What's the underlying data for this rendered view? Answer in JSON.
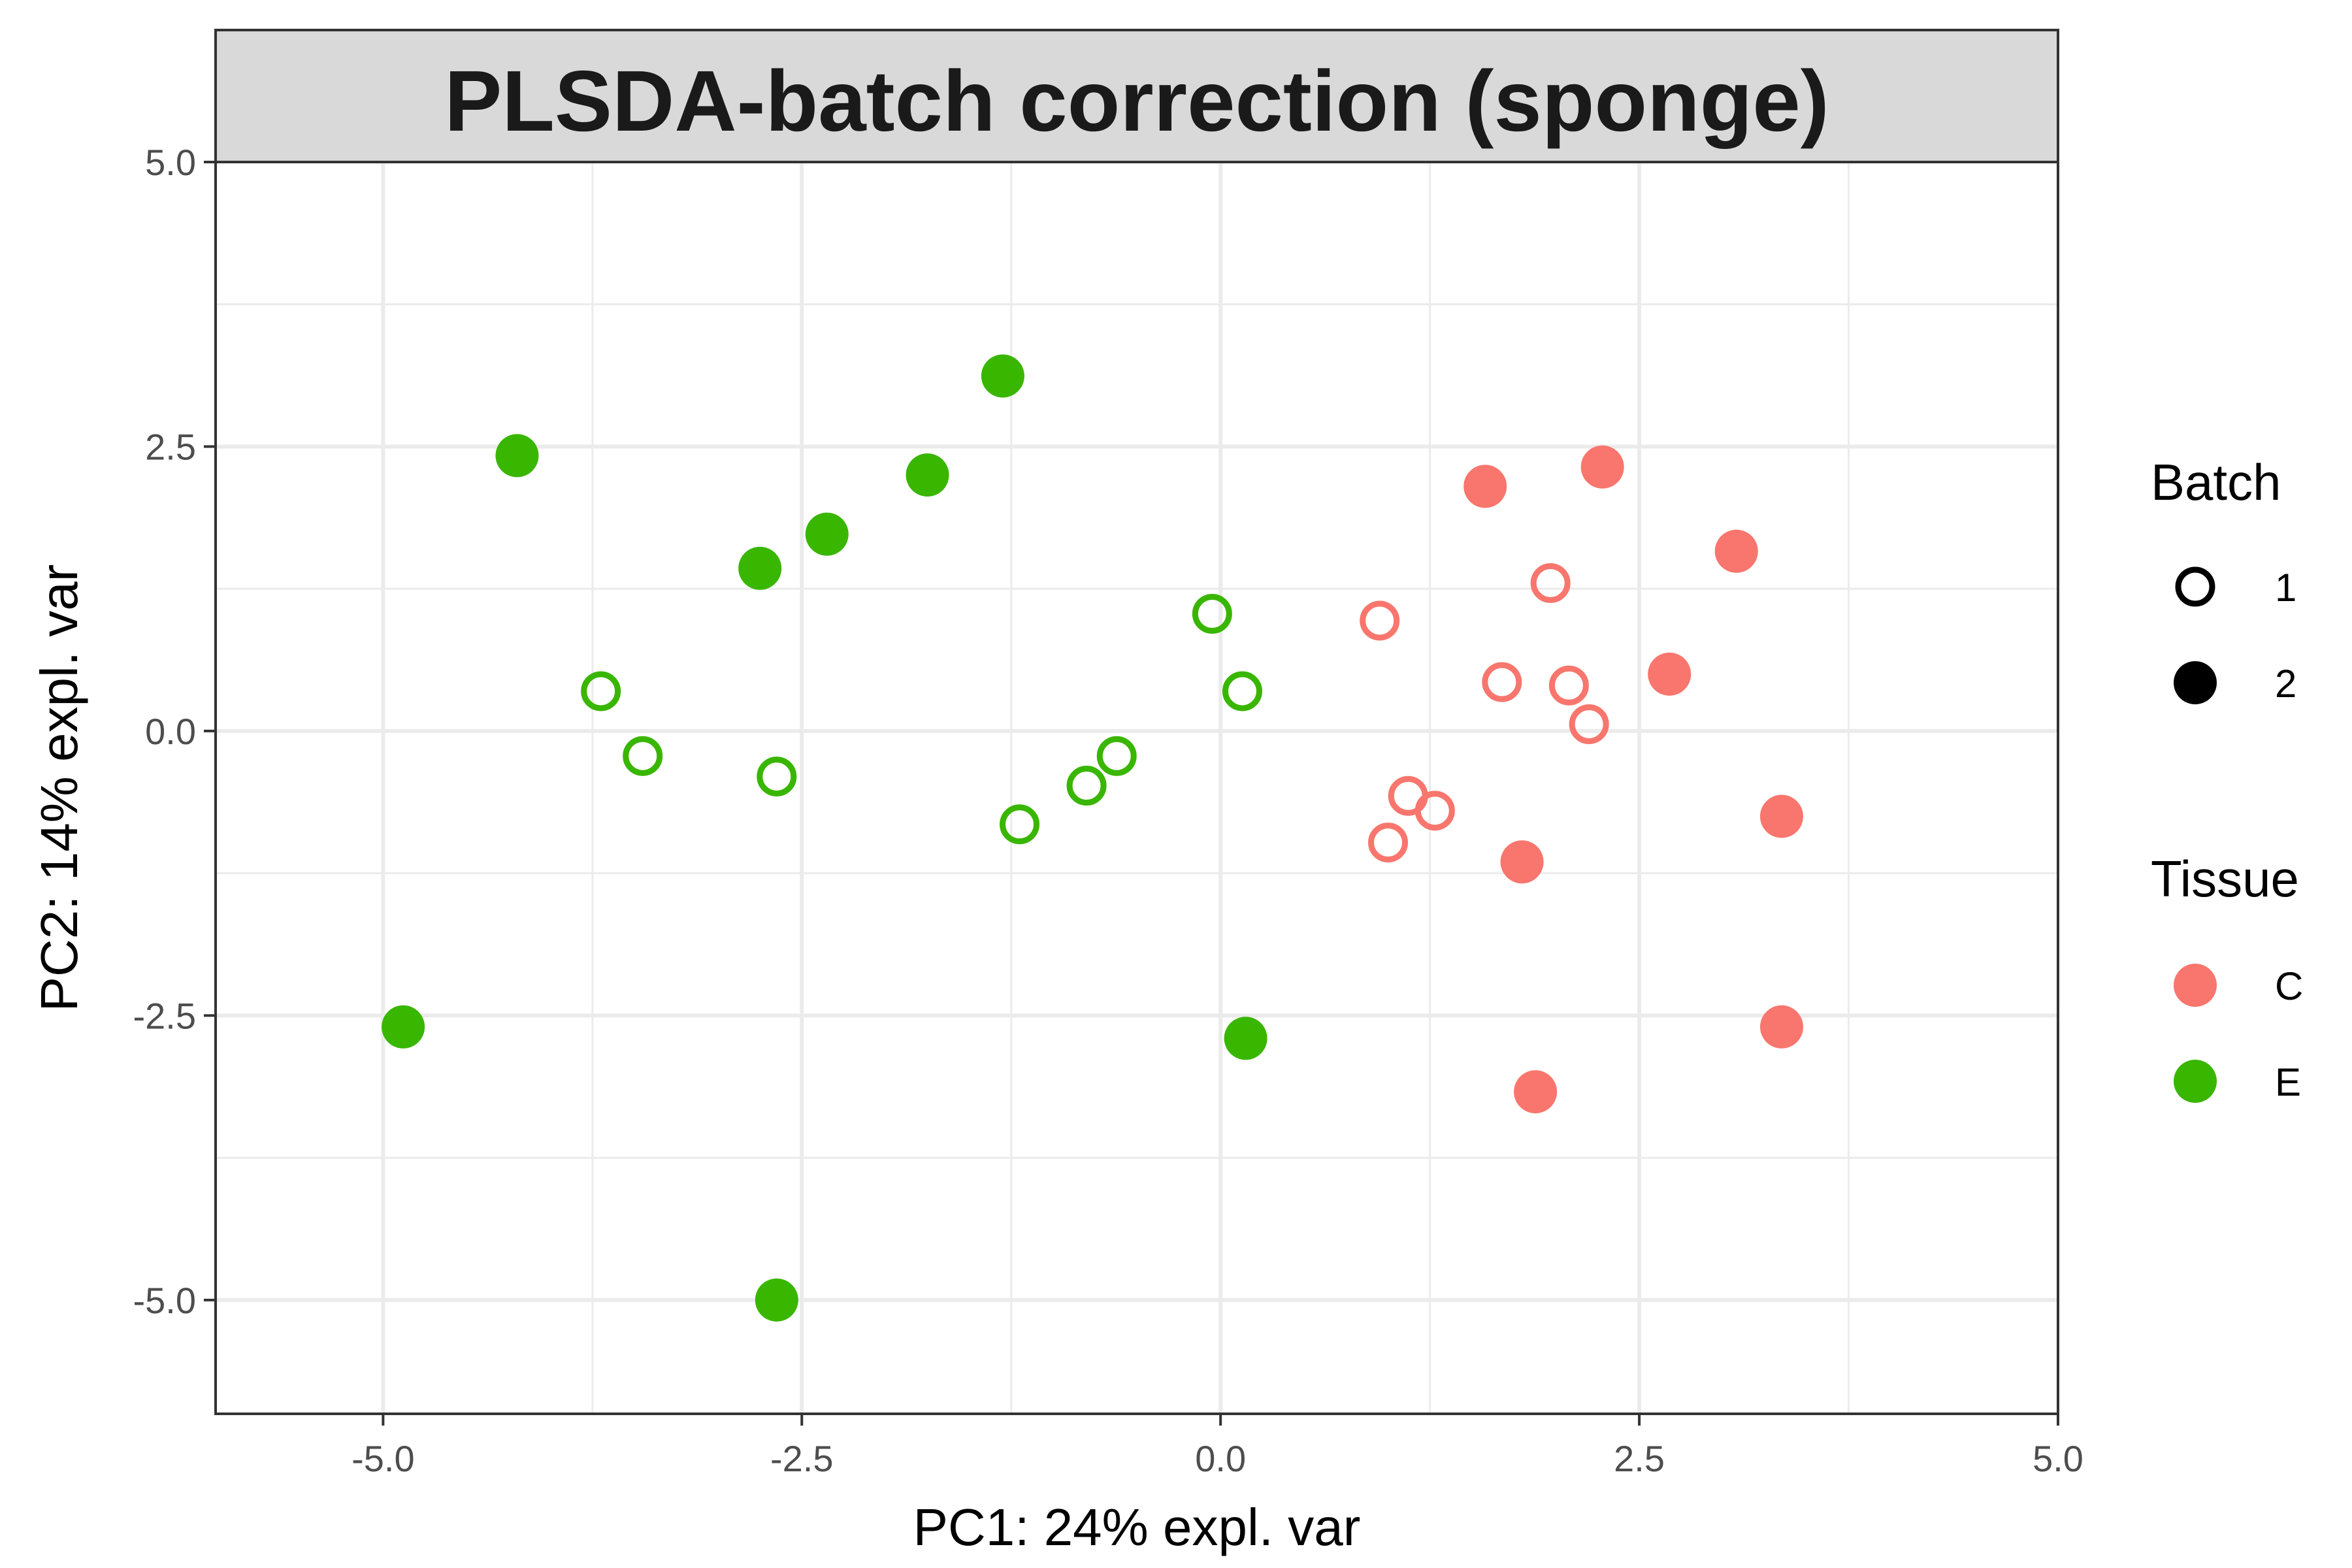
{
  "chart_data": {
    "type": "scatter",
    "title": "PLSDA-batch correction (sponge)",
    "xlabel": "PC1: 24% expl. var",
    "ylabel": "PC2: 14% expl. var",
    "xlim": [
      -6.0,
      5.0
    ],
    "ylim": [
      -6.0,
      5.0
    ],
    "xticks": [
      -5.0,
      -2.5,
      0.0,
      2.5,
      5.0
    ],
    "xtick_labels": [
      "-5.0",
      "-2.5",
      "0.0",
      "2.5",
      "5.0"
    ],
    "yticks": [
      -5.0,
      -2.5,
      0.0,
      2.5,
      5.0
    ],
    "ytick_labels": [
      "-5.0",
      "-2.5",
      "0.0",
      "2.5",
      "5.0"
    ],
    "grid": true,
    "legend_position": "right",
    "colors": {
      "C": "#f8766d",
      "E": "#39b600"
    },
    "legends": {
      "batch": {
        "title": "Batch",
        "entries": [
          {
            "label": "1",
            "shape": "open-circle"
          },
          {
            "label": "2",
            "shape": "filled-circle"
          }
        ]
      },
      "tissue": {
        "title": "Tissue",
        "entries": [
          {
            "label": "C",
            "color": "#f8766d"
          },
          {
            "label": "E",
            "color": "#39b600"
          }
        ]
      }
    },
    "points": [
      {
        "x": -1.3,
        "y": 3.12,
        "tissue": "E",
        "batch": "2"
      },
      {
        "x": -4.2,
        "y": 2.42,
        "tissue": "E",
        "batch": "2"
      },
      {
        "x": -1.75,
        "y": 2.25,
        "tissue": "E",
        "batch": "2"
      },
      {
        "x": -2.35,
        "y": 1.73,
        "tissue": "E",
        "batch": "2"
      },
      {
        "x": -2.75,
        "y": 1.43,
        "tissue": "E",
        "batch": "2"
      },
      {
        "x": -4.88,
        "y": -2.6,
        "tissue": "E",
        "batch": "2"
      },
      {
        "x": 0.15,
        "y": -2.7,
        "tissue": "E",
        "batch": "2"
      },
      {
        "x": -2.65,
        "y": -5.0,
        "tissue": "E",
        "batch": "2"
      },
      {
        "x": -0.05,
        "y": 1.03,
        "tissue": "E",
        "batch": "1"
      },
      {
        "x": -3.7,
        "y": 0.35,
        "tissue": "E",
        "batch": "1"
      },
      {
        "x": 0.13,
        "y": 0.35,
        "tissue": "E",
        "batch": "1"
      },
      {
        "x": -3.45,
        "y": -0.22,
        "tissue": "E",
        "batch": "1"
      },
      {
        "x": -0.62,
        "y": -0.22,
        "tissue": "E",
        "batch": "1"
      },
      {
        "x": -2.65,
        "y": -0.4,
        "tissue": "E",
        "batch": "1"
      },
      {
        "x": -0.8,
        "y": -0.48,
        "tissue": "E",
        "batch": "1"
      },
      {
        "x": -1.2,
        "y": -0.82,
        "tissue": "E",
        "batch": "1"
      },
      {
        "x": 2.28,
        "y": 2.32,
        "tissue": "C",
        "batch": "2"
      },
      {
        "x": 1.58,
        "y": 2.15,
        "tissue": "C",
        "batch": "2"
      },
      {
        "x": 3.08,
        "y": 1.58,
        "tissue": "C",
        "batch": "2"
      },
      {
        "x": 2.68,
        "y": 0.5,
        "tissue": "C",
        "batch": "2"
      },
      {
        "x": 3.35,
        "y": -0.75,
        "tissue": "C",
        "batch": "2"
      },
      {
        "x": 1.8,
        "y": -1.15,
        "tissue": "C",
        "batch": "2"
      },
      {
        "x": 3.35,
        "y": -2.6,
        "tissue": "C",
        "batch": "2"
      },
      {
        "x": 1.88,
        "y": -3.17,
        "tissue": "C",
        "batch": "2"
      },
      {
        "x": 1.97,
        "y": 1.3,
        "tissue": "C",
        "batch": "1"
      },
      {
        "x": 0.95,
        "y": 0.97,
        "tissue": "C",
        "batch": "1"
      },
      {
        "x": 1.68,
        "y": 0.43,
        "tissue": "C",
        "batch": "1"
      },
      {
        "x": 2.08,
        "y": 0.4,
        "tissue": "C",
        "batch": "1"
      },
      {
        "x": 2.2,
        "y": 0.06,
        "tissue": "C",
        "batch": "1"
      },
      {
        "x": 1.12,
        "y": -0.57,
        "tissue": "C",
        "batch": "1"
      },
      {
        "x": 1.28,
        "y": -0.7,
        "tissue": "C",
        "batch": "1"
      },
      {
        "x": 1.0,
        "y": -0.98,
        "tissue": "C",
        "batch": "1"
      }
    ]
  }
}
